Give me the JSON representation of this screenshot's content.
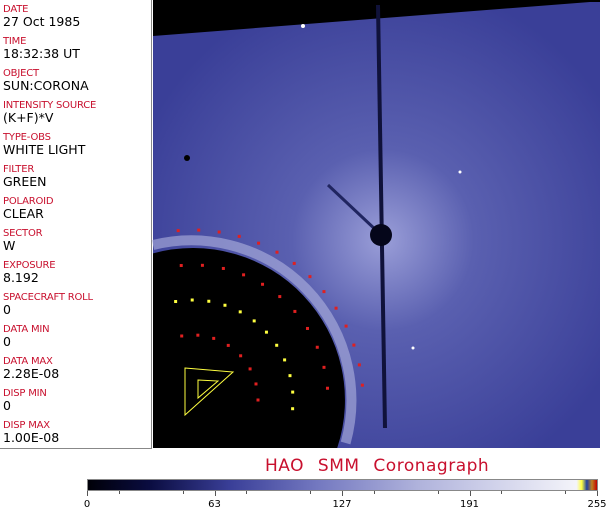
{
  "fields": [
    {
      "label": "DATE",
      "value": "27 Oct 1985"
    },
    {
      "label": "TIME",
      "value": "18:32:38 UT"
    },
    {
      "label": "OBJECT",
      "value": "SUN:CORONA"
    },
    {
      "label": "INTENSITY SOURCE",
      "value": "(K+F)*V"
    },
    {
      "label": "TYPE-OBS",
      "value": "WHITE LIGHT"
    },
    {
      "label": "FILTER",
      "value": "GREEN"
    },
    {
      "label": "POLAROID",
      "value": "CLEAR"
    },
    {
      "label": "SECTOR",
      "value": "W"
    },
    {
      "label": "EXPOSURE",
      "value": "8.192"
    },
    {
      "label": "SPACECRAFT ROLL",
      "value": "0"
    },
    {
      "label": "DATA MIN",
      "value": "0"
    },
    {
      "label": "DATA MAX",
      "value": "2.28E-08"
    },
    {
      "label": "DISP MIN",
      "value": "0"
    },
    {
      "label": "DISP MAX",
      "value": "1.00E-08"
    }
  ],
  "title": "HAO  SMM Coronagraph",
  "colorbar": {
    "ticks": [
      "0",
      "63",
      "127",
      "191",
      "255"
    ],
    "colors": {
      "low": "#000008",
      "mid": "#7378c0",
      "high": "#f4f4fa"
    }
  },
  "colors": {
    "label": "#c8102e",
    "overlay_red": "#e02020",
    "overlay_yellow": "#ffff40"
  }
}
